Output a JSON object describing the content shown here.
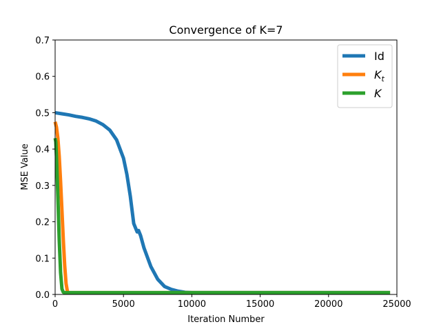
{
  "chart_data": {
    "type": "line",
    "title": "Convergence of K=7",
    "xlabel": "Iteration Number",
    "ylabel": "MSE Value",
    "xlim": [
      0,
      25000
    ],
    "ylim": [
      0,
      0.7
    ],
    "xticks": [
      0,
      5000,
      10000,
      15000,
      20000,
      25000
    ],
    "yticks": [
      0.0,
      0.1,
      0.2,
      0.3,
      0.4,
      0.5,
      0.6,
      0.7
    ],
    "xtick_labels": [
      "0",
      "5000",
      "10000",
      "15000",
      "20000",
      "25000"
    ],
    "ytick_labels": [
      "0.0",
      "0.1",
      "0.2",
      "0.3",
      "0.4",
      "0.5",
      "0.6",
      "0.7"
    ],
    "grid": false,
    "legend_position": "top-right",
    "series": [
      {
        "name": "Id",
        "color": "#1f77b4",
        "x": [
          0,
          500,
          1000,
          1500,
          2000,
          2500,
          3000,
          3500,
          4000,
          4500,
          5000,
          5250,
          5500,
          5750,
          6000,
          6100,
          6250,
          6500,
          7000,
          7500,
          8000,
          8500,
          9000,
          9500,
          10000,
          10500,
          11000,
          24500
        ],
        "y": [
          0.5,
          0.497,
          0.494,
          0.49,
          0.487,
          0.483,
          0.477,
          0.467,
          0.452,
          0.425,
          0.375,
          0.33,
          0.27,
          0.195,
          0.172,
          0.176,
          0.162,
          0.128,
          0.077,
          0.042,
          0.022,
          0.014,
          0.009,
          0.006,
          0.005,
          0.005,
          0.005,
          0.005
        ]
      },
      {
        "name": "K_t",
        "color": "#ff7f0e",
        "x": [
          0,
          100,
          200,
          300,
          400,
          500,
          600,
          700,
          800,
          900,
          1000,
          24500
        ],
        "y": [
          0.475,
          0.46,
          0.43,
          0.38,
          0.31,
          0.23,
          0.15,
          0.08,
          0.03,
          0.008,
          0.005,
          0.005
        ]
      },
      {
        "name": "K",
        "color": "#2ca02c",
        "x": [
          0,
          50,
          100,
          200,
          300,
          400,
          500,
          600,
          700,
          24500
        ],
        "y": [
          0.43,
          0.42,
          0.38,
          0.27,
          0.15,
          0.06,
          0.015,
          0.006,
          0.005,
          0.005
        ]
      }
    ]
  }
}
